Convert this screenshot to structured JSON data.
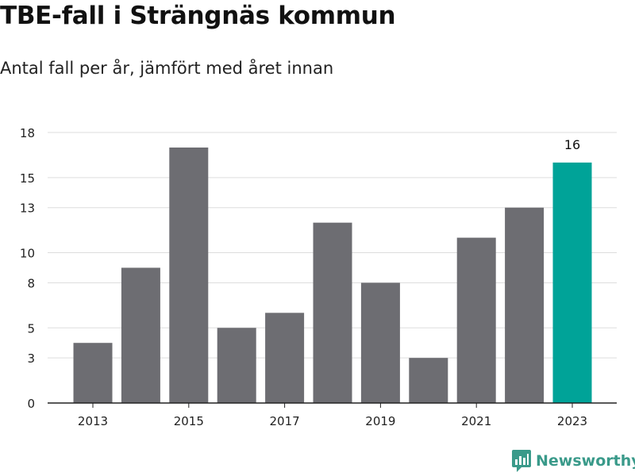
{
  "title": "TBE-fall i Strängnäs kommun",
  "subtitle": "Antal fall per år, jämfört med året innan",
  "brand": {
    "name": "Newsworthy",
    "icon": "newsworthy-logo-icon",
    "color": "#3a9a8a"
  },
  "colors": {
    "bar": "#6d6d72",
    "highlight": "#00a398",
    "grid": "#dddddd",
    "axis": "#222222"
  },
  "chart_data": {
    "type": "bar",
    "title": "TBE-fall i Strängnäs kommun",
    "subtitle": "Antal fall per år, jämfört med året innan",
    "xlabel": "",
    "ylabel": "",
    "categories": [
      "2013",
      "2014",
      "2015",
      "2016",
      "2017",
      "2018",
      "2019",
      "2020",
      "2021",
      "2022",
      "2023"
    ],
    "values": [
      4,
      9,
      17,
      5,
      6,
      12,
      8,
      3,
      11,
      13,
      16
    ],
    "ylim": [
      0,
      18
    ],
    "yticks": [
      0,
      3,
      5,
      8,
      10,
      13,
      15,
      18
    ],
    "ytick_labels": [
      "0",
      "3",
      "5",
      "8",
      "10",
      "13",
      "15",
      "18"
    ],
    "xtick_labels": [
      "2013",
      "2015",
      "2017",
      "2019",
      "2021",
      "2023"
    ],
    "highlight_category": "2023",
    "data_labels": [
      {
        "category": "2023",
        "text": "16"
      }
    ],
    "grid": true,
    "legend": "none"
  }
}
